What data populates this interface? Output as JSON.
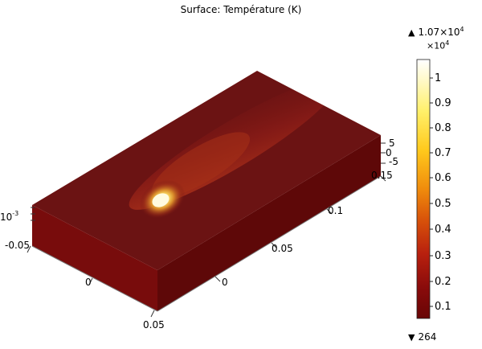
{
  "plot": {
    "title": "Surface: Température (K)"
  },
  "colorbar": {
    "max_label": "1.07×10",
    "max_exp": "4",
    "multiplier": "×10",
    "multiplier_exp": "4",
    "min_label": "264",
    "ticks": [
      "1",
      "0.9",
      "0.8",
      "0.7",
      "0.6",
      "0.5",
      "0.4",
      "0.3",
      "0.2",
      "0.1"
    ],
    "colormap": "thermal",
    "colors": [
      "#ffffff",
      "#fff26b",
      "#ffd21a",
      "#f29c0a",
      "#d9590a",
      "#b8200e",
      "#8a0b0b",
      "#6a0505"
    ]
  },
  "axes": {
    "x_ticks": [
      "0.05",
      "0",
      "-0.05"
    ],
    "y_ticks": [
      "0",
      "0.05",
      "0.1",
      "0.15"
    ],
    "z_ticks": [
      "5",
      "0",
      "-5"
    ],
    "z_exp_label": "10",
    "z_exp": "-3"
  },
  "surface": {
    "base_color": "#6b1212",
    "side_color": "#6e0a0a",
    "front_color": "#7b0c0c",
    "hotspot_color": "#fff7b0"
  }
}
